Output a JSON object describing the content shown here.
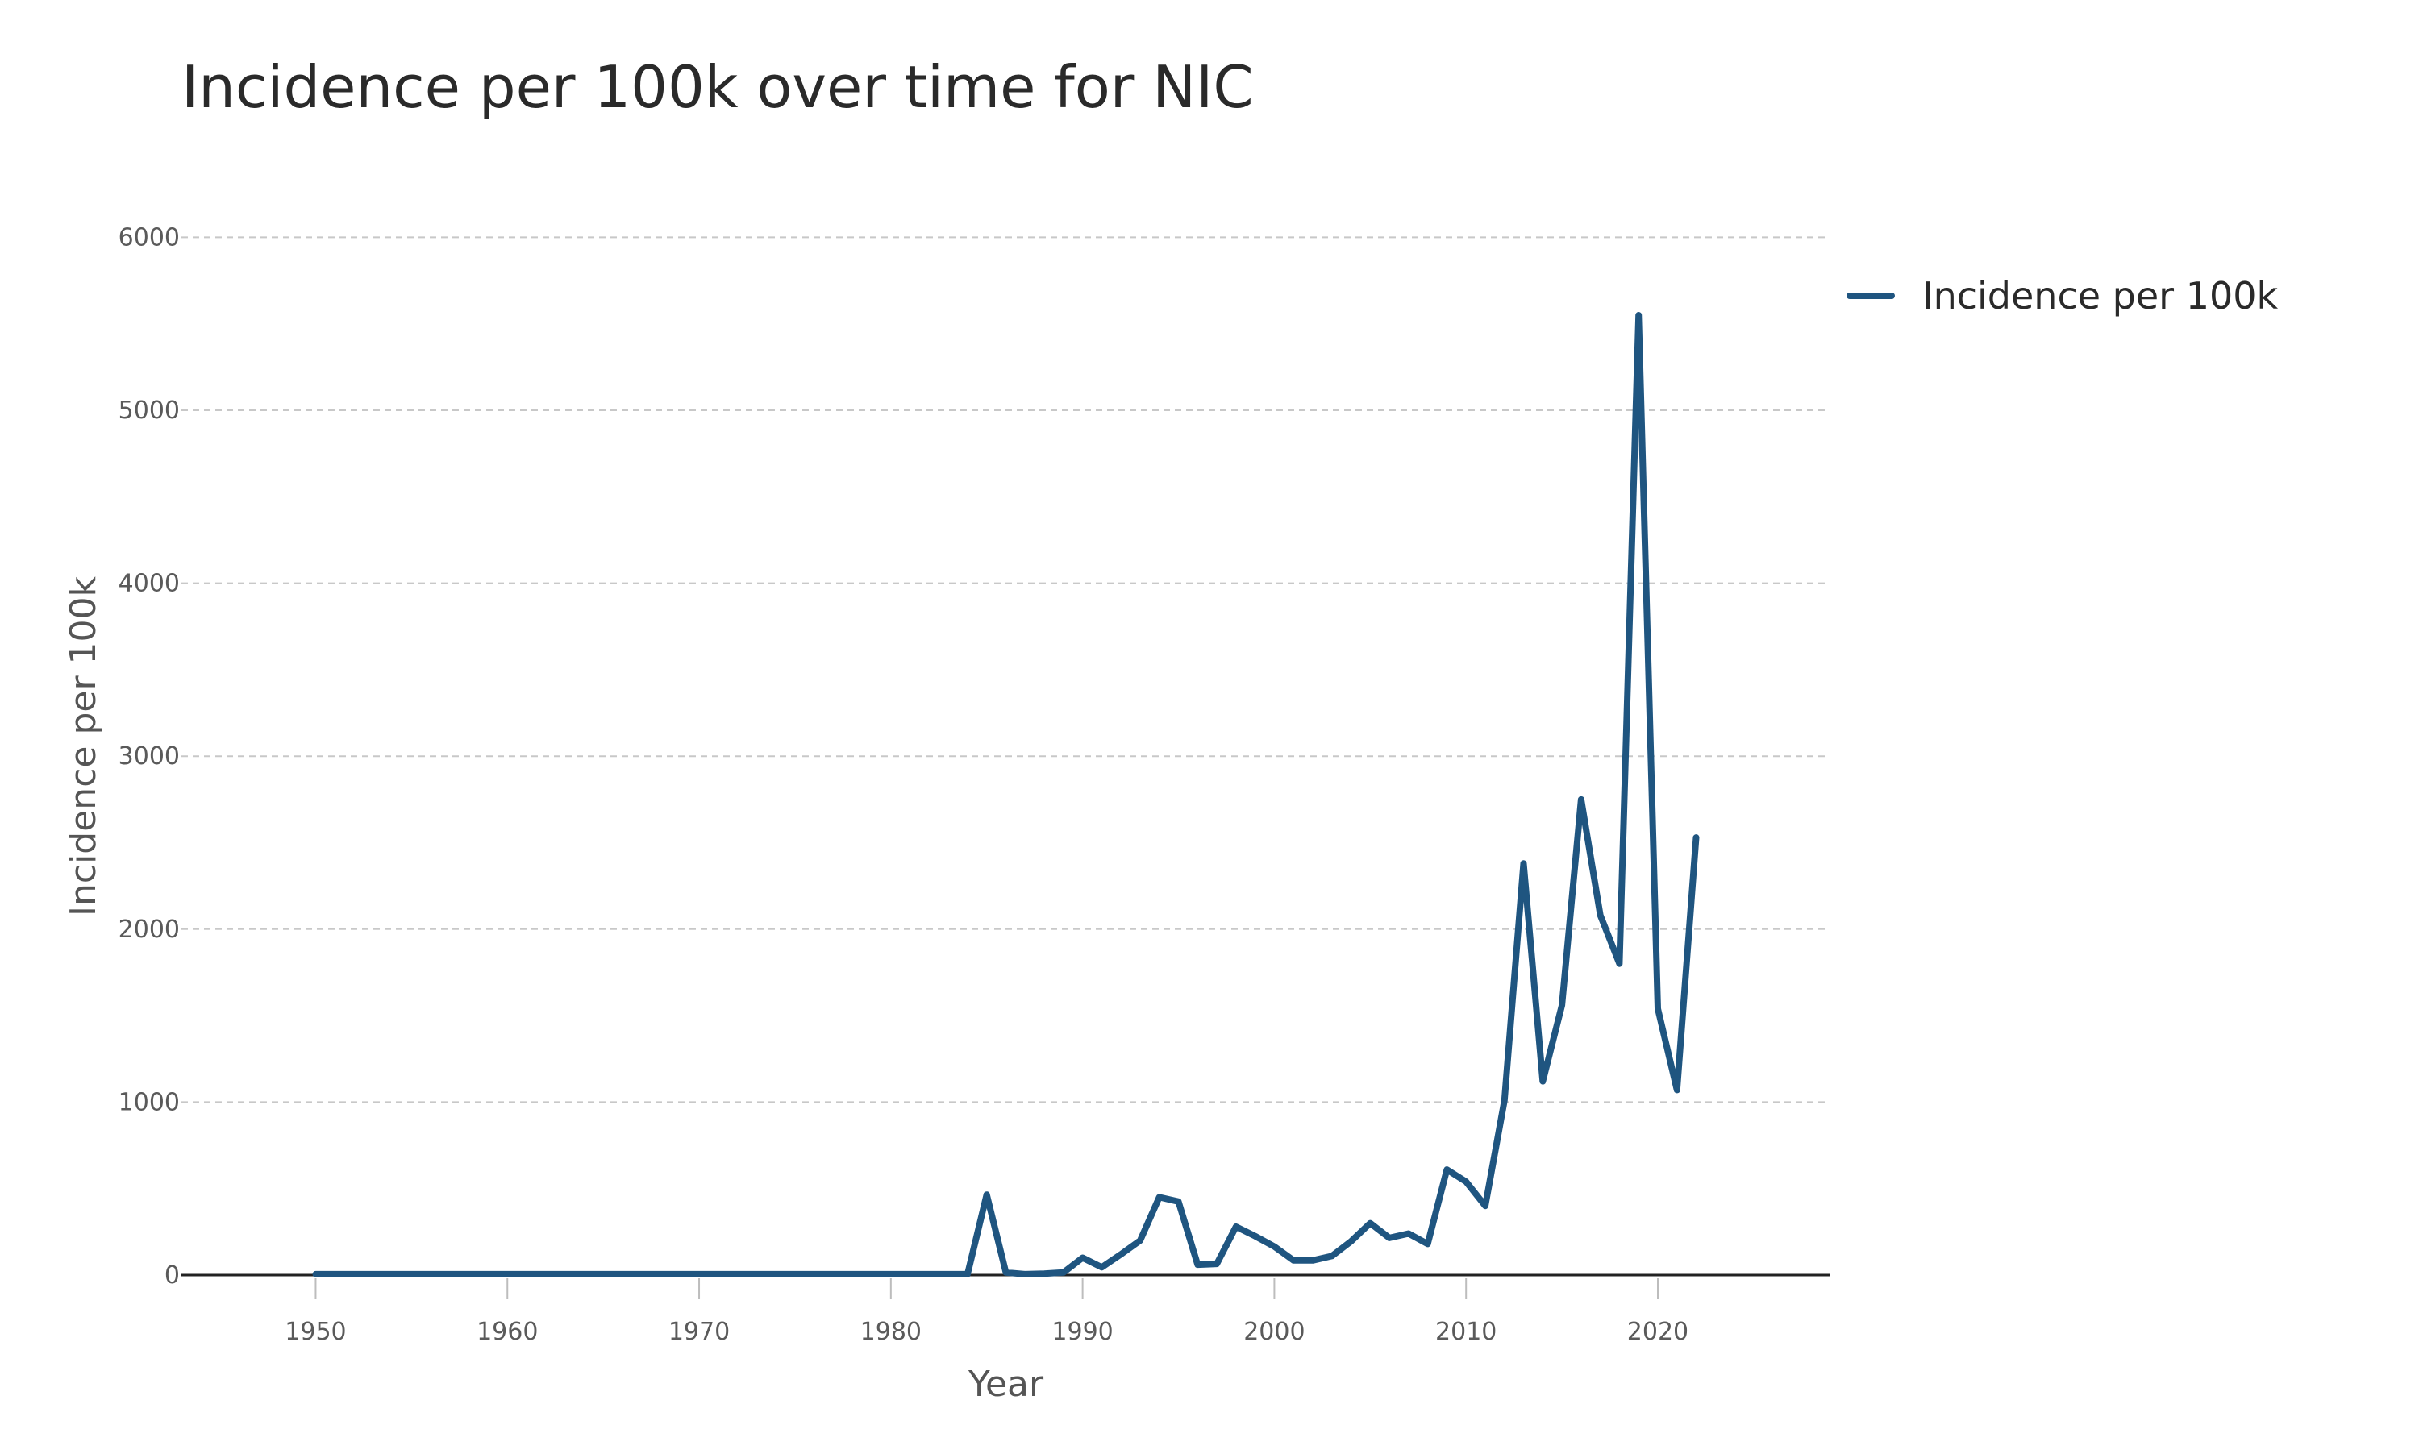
{
  "chart_data": {
    "type": "line",
    "title": "Incidence per 100k over time for NIC",
    "xlabel": "Year",
    "ylabel": "Incidence per 100k",
    "xlim": [
      1943,
      2029
    ],
    "ylim": [
      0,
      6300
    ],
    "xticks": [
      1950,
      1960,
      1970,
      1980,
      1990,
      2000,
      2010,
      2020
    ],
    "yticks": [
      0,
      1000,
      2000,
      3000,
      4000,
      5000,
      6000
    ],
    "grid": "horizontal dashed",
    "legend_position": "top-right outside",
    "series": [
      {
        "name": "Incidence per 100k",
        "color": "#1f5580",
        "x": [
          1950,
          1951,
          1952,
          1953,
          1954,
          1955,
          1956,
          1957,
          1958,
          1959,
          1960,
          1961,
          1962,
          1963,
          1964,
          1965,
          1966,
          1967,
          1968,
          1969,
          1970,
          1971,
          1972,
          1973,
          1974,
          1975,
          1976,
          1977,
          1978,
          1979,
          1980,
          1981,
          1982,
          1983,
          1984,
          1985,
          1986,
          1987,
          1988,
          1989,
          1990,
          1991,
          1992,
          1993,
          1994,
          1995,
          1996,
          1997,
          1998,
          1999,
          2000,
          2001,
          2002,
          2003,
          2004,
          2005,
          2006,
          2007,
          2008,
          2009,
          2010,
          2011,
          2012,
          2013,
          2014,
          2015,
          2016,
          2017,
          2018,
          2019,
          2020,
          2021,
          2022
        ],
        "values": [
          5,
          5,
          5,
          5,
          5,
          5,
          5,
          5,
          5,
          5,
          5,
          5,
          5,
          5,
          5,
          5,
          5,
          5,
          5,
          5,
          5,
          5,
          5,
          5,
          5,
          5,
          5,
          5,
          5,
          5,
          5,
          5,
          5,
          5,
          5,
          465,
          15,
          5,
          8,
          15,
          100,
          45,
          120,
          200,
          450,
          425,
          60,
          65,
          280,
          225,
          165,
          85,
          85,
          110,
          195,
          300,
          215,
          240,
          180,
          610,
          540,
          400,
          1010,
          2380,
          1120,
          1560,
          2750,
          2080,
          1800,
          5550,
          1540,
          1070,
          2530
        ]
      }
    ]
  }
}
